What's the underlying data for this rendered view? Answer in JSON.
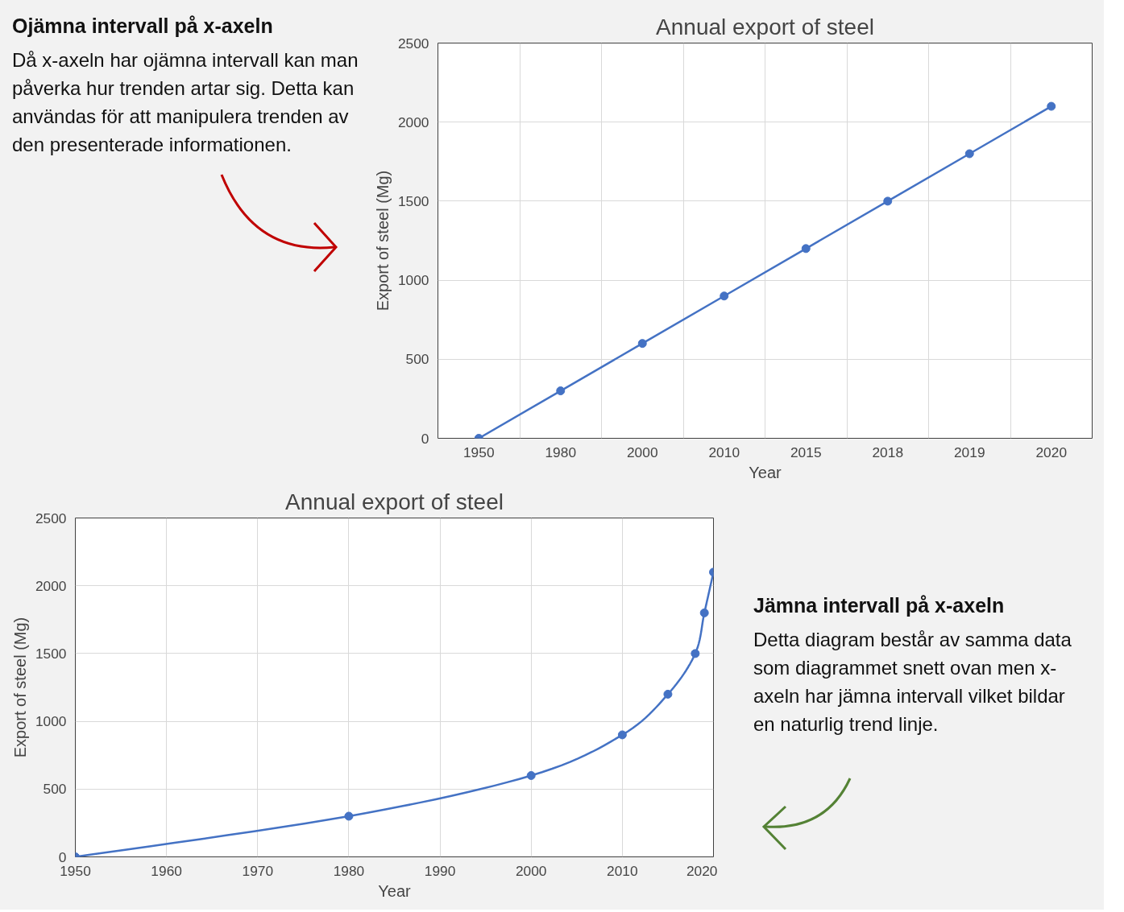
{
  "chart_data": [
    {
      "type": "line",
      "title": "Annual export of steel",
      "xlabel": "Year",
      "ylabel": "Export of steel (Mg)",
      "categories": [
        "1950",
        "1980",
        "2000",
        "2010",
        "2015",
        "2018",
        "2019",
        "2020"
      ],
      "series": [
        {
          "color": "#4472c4",
          "values": [
            0,
            300,
            600,
            900,
            1200,
            1500,
            1800,
            2100
          ]
        }
      ],
      "ylim": [
        0,
        2500
      ],
      "yticks": [
        0,
        500,
        1000,
        1500,
        2000,
        2500
      ],
      "grid": true,
      "marker": "circle",
      "annotations": [
        "Ojämna intervall på x-axeln",
        "Då x-axeln har ojämna intervall kan man påverka hur trenden artar sig. Detta kan användas för att manipulera trenden av den presenterade informationen."
      ]
    },
    {
      "type": "line",
      "title": "Annual export of steel",
      "xlabel": "Year",
      "ylabel": "Export of steel (Mg)",
      "x": [
        1950,
        1980,
        2000,
        2010,
        2015,
        2018,
        2019,
        2020
      ],
      "series": [
        {
          "color": "#4472c4",
          "values": [
            0,
            300,
            600,
            900,
            1200,
            1500,
            1800,
            2100
          ]
        }
      ],
      "xlim": [
        1950,
        2020
      ],
      "xticks": [
        1950,
        1960,
        1970,
        1980,
        1990,
        2000,
        2010,
        2020
      ],
      "ylim": [
        0,
        2500
      ],
      "yticks": [
        0,
        500,
        1000,
        1500,
        2000,
        2500
      ],
      "grid": true,
      "marker": "circle",
      "annotations": [
        "Jämna intervall på x-axeln",
        "Detta diagram består av samma data som diagrammet snett ovan men x-axeln har jämna intervall vilket bildar en naturlig trend linje."
      ]
    }
  ]
}
